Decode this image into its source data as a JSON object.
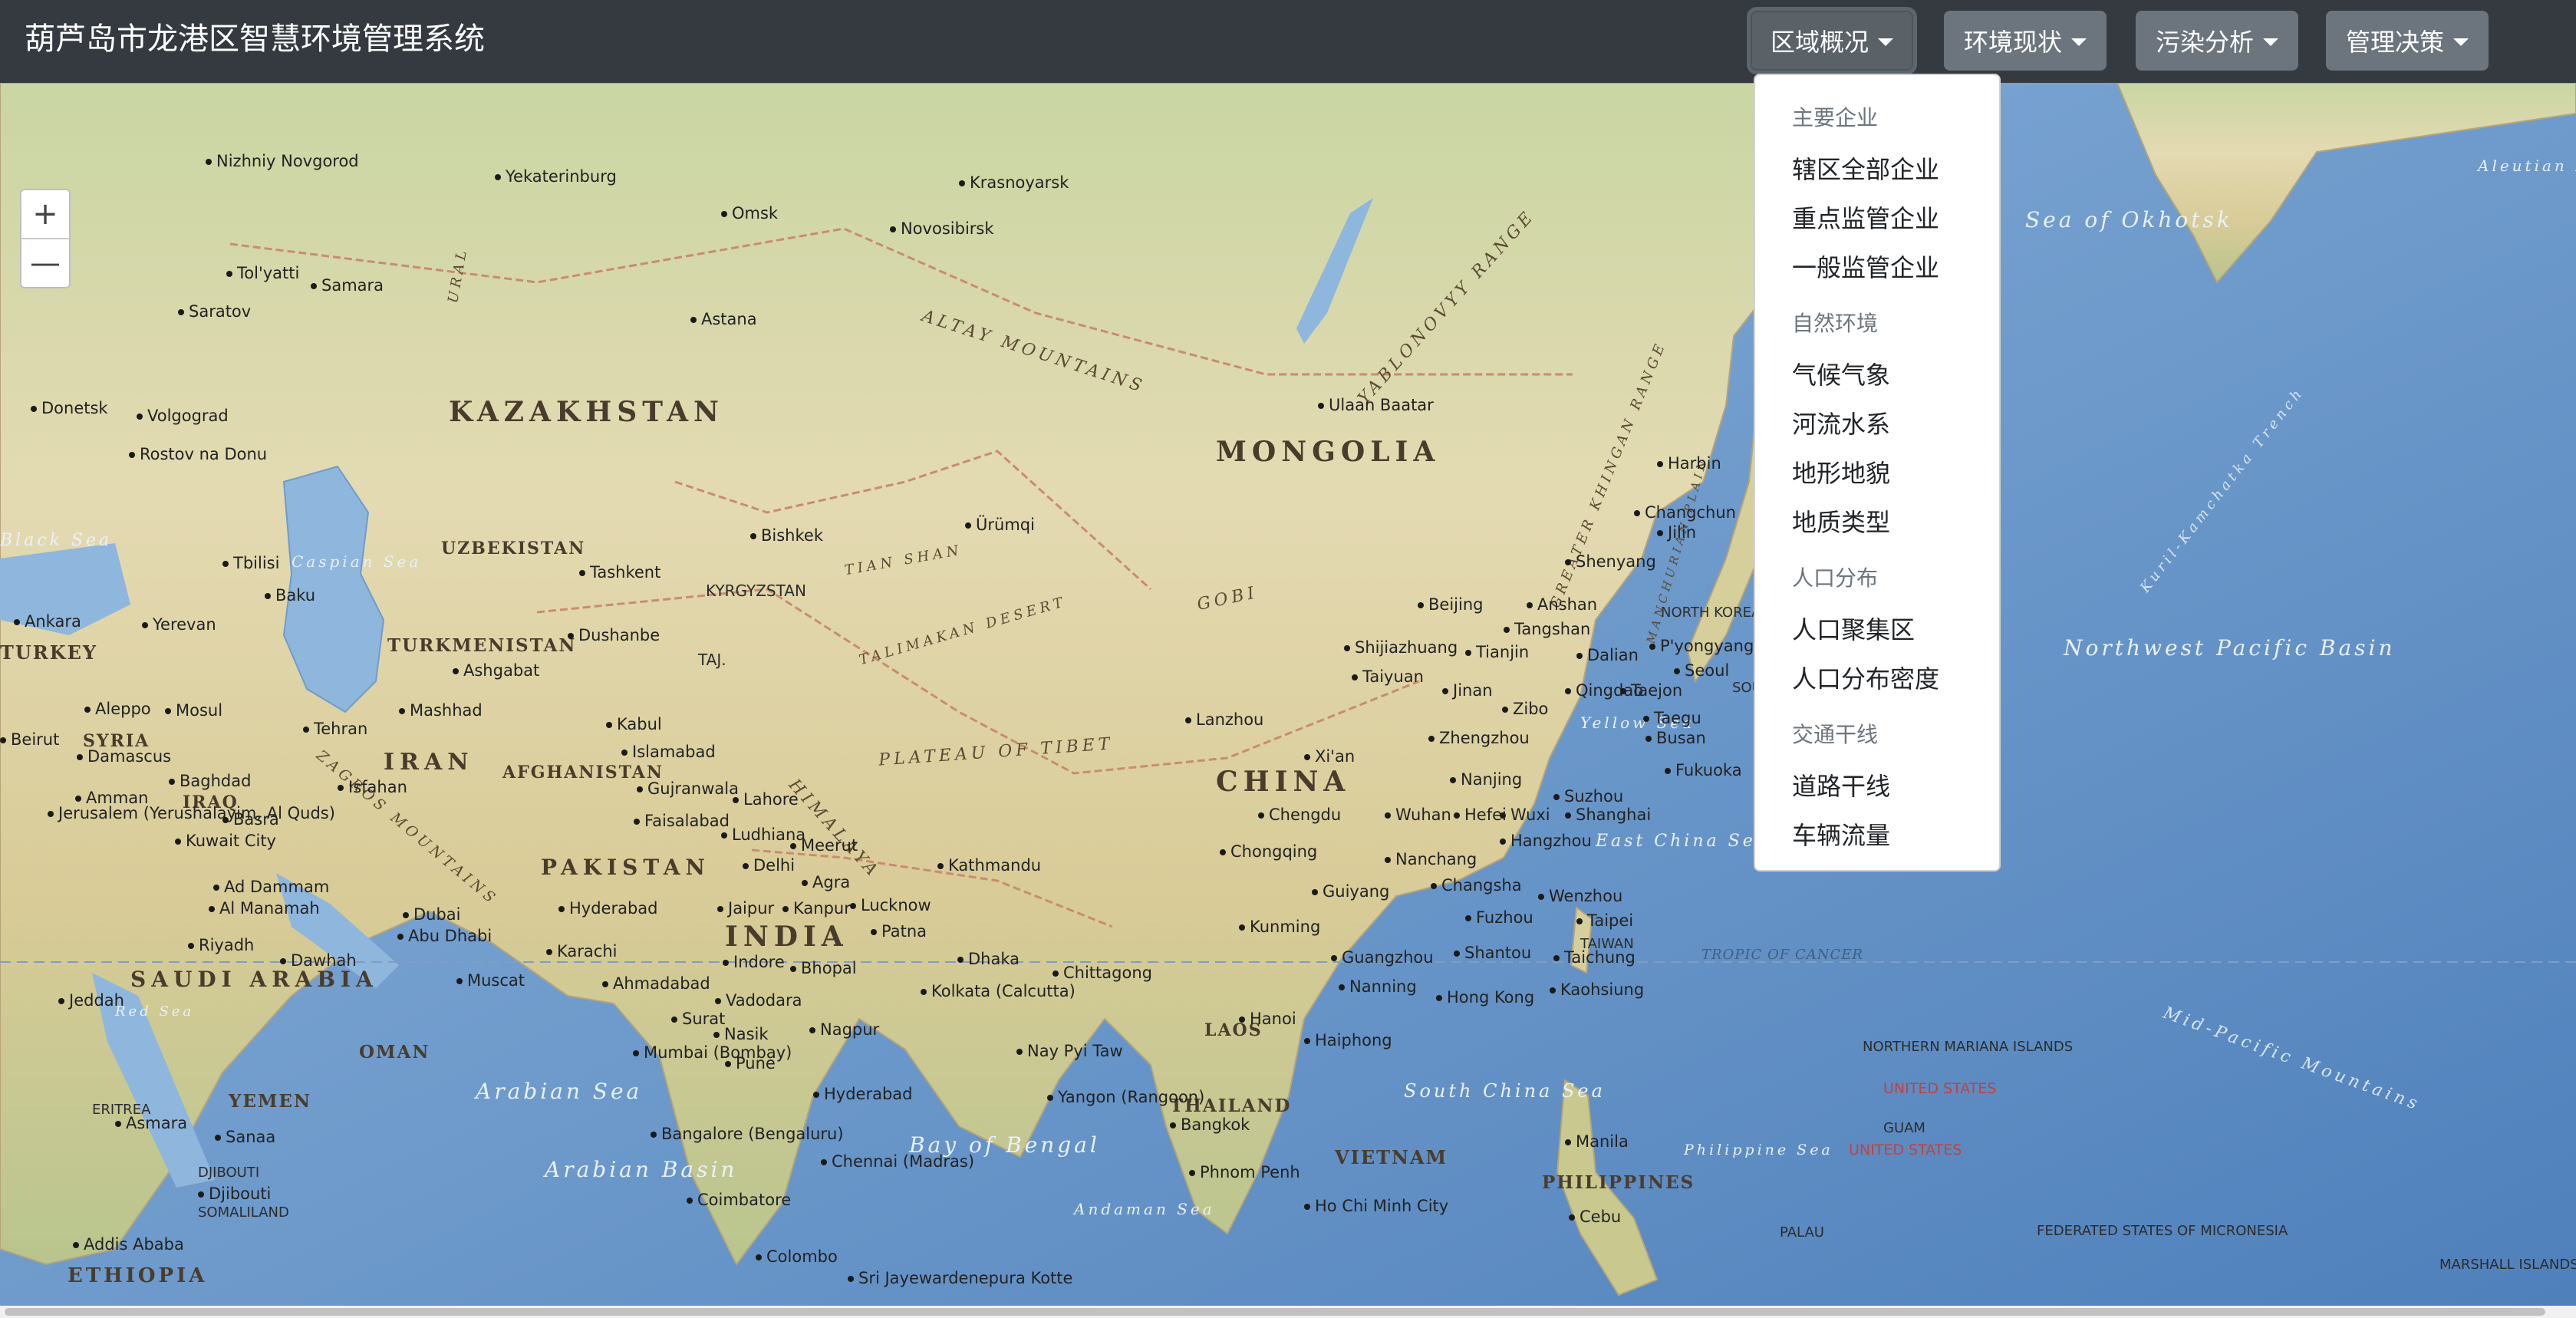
{
  "app": {
    "title": "葫芦岛市龙港区智慧环境管理系统"
  },
  "nav": {
    "buttons": [
      {
        "label": "区域概况"
      },
      {
        "label": "环境现状"
      },
      {
        "label": "污染分析"
      },
      {
        "label": "管理决策"
      }
    ]
  },
  "dropdown": {
    "groups": [
      {
        "header": "主要企业",
        "items": [
          "辖区全部企业",
          "重点监管企业",
          "一般监管企业"
        ]
      },
      {
        "header": "自然环境",
        "items": [
          "气候气象",
          "河流水系",
          "地形地貌",
          "地质类型"
        ]
      },
      {
        "header": "人口分布",
        "items": [
          "人口聚集区",
          "人口分布密度"
        ]
      },
      {
        "header": "交通干线",
        "items": [
          "道路干线",
          "车辆流量"
        ]
      }
    ]
  },
  "map": {
    "zoom": {
      "in": "+",
      "out": "—"
    },
    "countries": [
      "KAZAKHSTAN",
      "MONGOLIA",
      "CHINA",
      "INDIA",
      "IRAN",
      "PAKISTAN",
      "SAUDI ARABIA",
      "UZBEKISTAN",
      "TURKMENISTAN",
      "AFGHANISTAN",
      "THAILAND",
      "VIETNAM",
      "PHILIPPINES",
      "OMAN",
      "YEMEN",
      "IRAQ",
      "SYRIA",
      "TURKEY",
      "ETHIOPIA",
      "LAOS",
      "KYRGYZSTAN",
      "TAJ.",
      "NORTH KOREA",
      "SOUTH KOREA",
      "TAIWAN",
      "DJIBOUTI",
      "SOMALILAND",
      "ERITREA"
    ],
    "seas": [
      "Sea of Okhotsk",
      "Northwest Pacific Basin",
      "East China Sea",
      "South China Sea",
      "Bay of Bengal",
      "Arabian Sea",
      "Arabian Basin",
      "Yellow Sea",
      "Philippine Sea",
      "Caspian Sea",
      "Black Sea",
      "Andaman Sea",
      "Red Sea",
      "Aleutian Basin"
    ],
    "terrain": [
      "ALTAY MOUNTAINS",
      "YABLONOVYY RANGE",
      "GREATER KHINGAN RANGE",
      "TALIMAKAN DESERT",
      "PLATEAU OF TIBET",
      "HIMALAYA",
      "GOBI",
      "ZAGROS MOUNTAINS",
      "URAL",
      "Kuril-Kamchatka Trench",
      "Mid-Pacific Mountains",
      "TROPIC OF CANCER",
      "MANCHURIAN PLAIN",
      "TIAN SHAN"
    ],
    "territories": [
      "NORTHERN MARIANA ISLANDS",
      "GUAM",
      "PALAU",
      "FEDERATED STATES OF MICRONESIA",
      "MARSHALL ISLANDS"
    ],
    "us_labels": [
      "UNITED STATES",
      "UNITED STATES"
    ],
    "cities": [
      "Nizhniy Novgorod",
      "Yekaterinburg",
      "Krasnoyarsk",
      "Omsk",
      "Novosibirsk",
      "Tol'yatti",
      "Samara",
      "Saratov",
      "Astana",
      "Volgograd",
      "Donetsk",
      "Rostov na Donu",
      "Ulaan Baatar",
      "Harbin",
      "Changchun",
      "Jilin",
      "Shenyang",
      "Bishkek",
      "Ürümqi",
      "Tashkent",
      "Tbilisi",
      "Baku",
      "Yerevan",
      "Ankara",
      "Dushanbe",
      "Ashgabat",
      "Beijing",
      "Anshan",
      "Tangshan",
      "Dalian",
      "Shijiazhuang",
      "Tianjin",
      "P'yongyang",
      "Seoul",
      "Taiyuan",
      "Jinan",
      "Zibo",
      "Qingdao",
      "Taejon",
      "Taegu",
      "Busan",
      "Aleppo",
      "Mosul",
      "Mashhad",
      "Kabul",
      "Tehran",
      "Beirut",
      "Damascus",
      "Lanzhou",
      "Xi'an",
      "Zhengzhou",
      "Islamabad",
      "Gujranwala",
      "Lahore",
      "Baghdad",
      "Isfahan",
      "Faisalabad",
      "Ludhiana",
      "Meerut",
      "Nanjing",
      "Suzhou",
      "Wuxi",
      "Shanghai",
      "Fukuoka",
      "Amman",
      "Jerusalem (Yerushalayim, Al Quds)",
      "Basra",
      "Kuwait City",
      "Delhi",
      "Agra",
      "Kathmandu",
      "Chengdu",
      "Wuhan",
      "Hefei",
      "Hangzhou",
      "Chongqing",
      "Nanchang",
      "Changsha",
      "Jaipur",
      "Kanpur",
      "Lucknow",
      "Guiyang",
      "Wenzhou",
      "Fuzhou",
      "Ad Dammam",
      "Al Manamah",
      "Hyderabad",
      "Patna",
      "Kunming",
      "Taipei",
      "Riyadh",
      "Dawhah",
      "Abu Dhabi",
      "Dubai",
      "Karachi",
      "Indore",
      "Bhopal",
      "Dhaka",
      "Chittagong",
      "Guangzhou",
      "Shantou",
      "Taichung",
      "Jeddah",
      "Muscat",
      "Ahmadabad",
      "Vadodara",
      "Kolkata (Calcutta)",
      "Nanning",
      "Hong Kong",
      "Kaohsiung",
      "Surat",
      "Nasik",
      "Nagpur",
      "Hanoi",
      "Haiphong",
      "Mumbai (Bombay)",
      "Pune",
      "Nay Pyi Taw",
      "Yangon (Rangoon)",
      "Bangkok",
      "Manila",
      "Sanaa",
      "Asmara",
      "Hyderabad",
      "Bangalore (Bengaluru)",
      "Chennai (Madras)",
      "Phnom Penh",
      "Ho Chi Minh City",
      "Cebu",
      "Coimbatore",
      "Addis Ababa",
      "Colombo",
      "Sri Jayewardenepura Kotte",
      "Djibouti"
    ]
  },
  "colors": {
    "navbar": "#343a40",
    "button": "#6c757d",
    "land": "#e6dcb4",
    "water": "#5e8fc4"
  }
}
